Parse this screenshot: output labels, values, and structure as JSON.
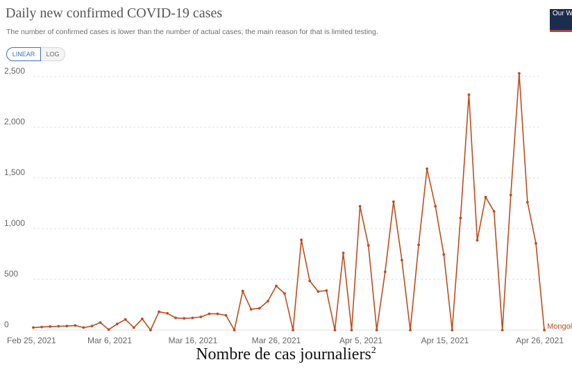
{
  "header": {
    "title": "Daily new confirmed COVID-19 cases",
    "subtitle": "The number of confirmed cases is lower than the number of actual cases; the main reason for that is limited testing.",
    "logo_text": "Our World in Data"
  },
  "controls": {
    "linear_label": "LINEAR",
    "log_label": "LOG",
    "selected": "LINEAR"
  },
  "caption": {
    "text": "Nombre de cas journaliers",
    "sup": "2"
  },
  "colors": {
    "series": "#bd4c1f",
    "grid": "#dddddd",
    "text": "#666666"
  },
  "chart_data": {
    "type": "line",
    "title": "Daily new confirmed COVID-19 cases",
    "subtitle": "The number of confirmed cases is lower than the number of actual cases; the main reason for that is limited testing.",
    "y_scale": "linear",
    "ylim": [
      0,
      2500
    ],
    "yticks": [
      {
        "value": 0,
        "label": "0"
      },
      {
        "value": 500,
        "label": "500"
      },
      {
        "value": 1000,
        "label": "1,000"
      },
      {
        "value": 1500,
        "label": "1,500"
      },
      {
        "value": 2000,
        "label": "2,000"
      },
      {
        "value": 2500,
        "label": "2,500"
      }
    ],
    "xticks": [
      "Feb 25, 2021",
      "Mar 6, 2021",
      "Mar 16, 2021",
      "Mar 26, 2021",
      "Apr 5, 2021",
      "Apr 15, 2021",
      "Apr 26, 2021"
    ],
    "x_start": "2021-02-25",
    "x_end": "2021-04-26",
    "grid": true,
    "series": [
      {
        "name": "Mongolia",
        "color": "#bd4c1f",
        "points": [
          {
            "x": "2021-02-25",
            "y": 25
          },
          {
            "x": "2021-02-26",
            "y": 30
          },
          {
            "x": "2021-02-27",
            "y": 35
          },
          {
            "x": "2021-02-28",
            "y": 38
          },
          {
            "x": "2021-03-01",
            "y": 40
          },
          {
            "x": "2021-03-02",
            "y": 45
          },
          {
            "x": "2021-03-03",
            "y": 25
          },
          {
            "x": "2021-03-04",
            "y": 40
          },
          {
            "x": "2021-03-05",
            "y": 75
          },
          {
            "x": "2021-03-06",
            "y": 5
          },
          {
            "x": "2021-03-07",
            "y": 60
          },
          {
            "x": "2021-03-08",
            "y": 105
          },
          {
            "x": "2021-03-09",
            "y": 25
          },
          {
            "x": "2021-03-10",
            "y": 110
          },
          {
            "x": "2021-03-11",
            "y": 0
          },
          {
            "x": "2021-03-12",
            "y": 180
          },
          {
            "x": "2021-03-13",
            "y": 165
          },
          {
            "x": "2021-03-14",
            "y": 120
          },
          {
            "x": "2021-03-15",
            "y": 115
          },
          {
            "x": "2021-03-16",
            "y": 120
          },
          {
            "x": "2021-03-17",
            "y": 130
          },
          {
            "x": "2021-03-18",
            "y": 160
          },
          {
            "x": "2021-03-19",
            "y": 160
          },
          {
            "x": "2021-03-20",
            "y": 145
          },
          {
            "x": "2021-03-21",
            "y": 0
          },
          {
            "x": "2021-03-22",
            "y": 385
          },
          {
            "x": "2021-03-23",
            "y": 205
          },
          {
            "x": "2021-03-24",
            "y": 215
          },
          {
            "x": "2021-03-25",
            "y": 285
          },
          {
            "x": "2021-03-26",
            "y": 435
          },
          {
            "x": "2021-03-27",
            "y": 360
          },
          {
            "x": "2021-03-28",
            "y": 0
          },
          {
            "x": "2021-03-29",
            "y": 890
          },
          {
            "x": "2021-03-30",
            "y": 485
          },
          {
            "x": "2021-03-31",
            "y": 380
          },
          {
            "x": "2021-04-01",
            "y": 390
          },
          {
            "x": "2021-04-02",
            "y": 0
          },
          {
            "x": "2021-04-03",
            "y": 760
          },
          {
            "x": "2021-04-04",
            "y": 0
          },
          {
            "x": "2021-04-05",
            "y": 1220
          },
          {
            "x": "2021-04-06",
            "y": 835
          },
          {
            "x": "2021-04-07",
            "y": 0
          },
          {
            "x": "2021-04-08",
            "y": 575
          },
          {
            "x": "2021-04-09",
            "y": 1265
          },
          {
            "x": "2021-04-10",
            "y": 690
          },
          {
            "x": "2021-04-11",
            "y": 0
          },
          {
            "x": "2021-04-12",
            "y": 840
          },
          {
            "x": "2021-04-13",
            "y": 1590
          },
          {
            "x": "2021-04-14",
            "y": 1220
          },
          {
            "x": "2021-04-15",
            "y": 745
          },
          {
            "x": "2021-04-16",
            "y": 0
          },
          {
            "x": "2021-04-17",
            "y": 1105
          },
          {
            "x": "2021-04-18",
            "y": 2320
          },
          {
            "x": "2021-04-19",
            "y": 885
          },
          {
            "x": "2021-04-20",
            "y": 1310
          },
          {
            "x": "2021-04-21",
            "y": 1170
          },
          {
            "x": "2021-04-22",
            "y": 0
          },
          {
            "x": "2021-04-23",
            "y": 1330
          },
          {
            "x": "2021-04-24",
            "y": 2530
          },
          {
            "x": "2021-04-25",
            "y": 1260
          },
          {
            "x": "2021-04-26",
            "y": 855
          },
          {
            "x": "2021-04-27",
            "y": 0
          }
        ]
      }
    ]
  }
}
